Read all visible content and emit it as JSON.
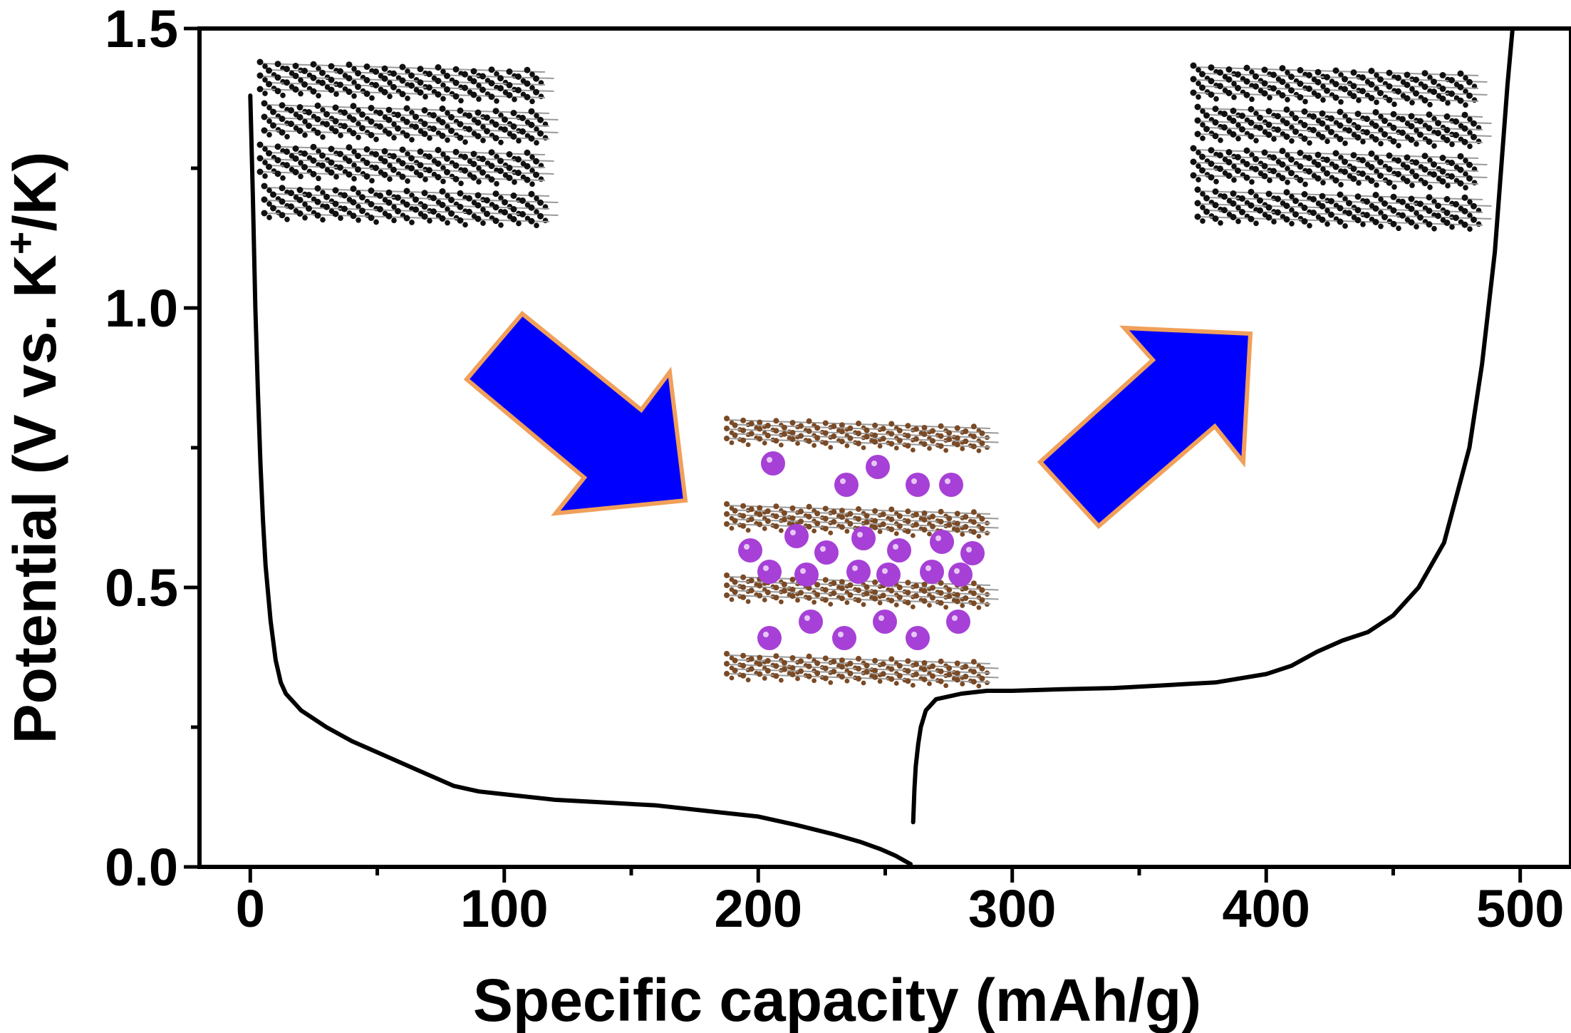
{
  "chart_data": {
    "type": "line",
    "title": "",
    "xlabel": "Specific capacity (mAh/g)",
    "ylabel_parts": {
      "prefix": "Potential (V vs. K",
      "superscript": "+",
      "suffix": "/K)"
    },
    "xlim": [
      -20,
      520
    ],
    "ylim": [
      0,
      1.5
    ],
    "x_ticks": [
      0,
      100,
      200,
      300,
      400,
      500
    ],
    "x_tick_labels": [
      "0",
      "100",
      "200",
      "300",
      "400",
      "500"
    ],
    "y_ticks": [
      0.0,
      0.5,
      1.0,
      1.5
    ],
    "y_tick_labels": [
      "0.0",
      "0.5",
      "1.0",
      "1.5"
    ],
    "grid": false,
    "legend": "none",
    "line_color": "#000000",
    "series": [
      {
        "x": [
          0,
          1,
          2,
          3,
          4,
          5,
          6,
          8,
          10,
          12,
          14,
          16,
          18,
          20,
          25,
          30,
          40,
          50,
          60,
          70,
          80,
          90,
          100,
          120,
          140,
          160,
          180,
          200,
          215,
          230,
          240,
          248,
          254,
          258,
          260
        ],
        "y": [
          1.38,
          1.2,
          1.0,
          0.85,
          0.72,
          0.62,
          0.54,
          0.44,
          0.37,
          0.33,
          0.31,
          0.3,
          0.29,
          0.28,
          0.265,
          0.25,
          0.225,
          0.205,
          0.185,
          0.165,
          0.145,
          0.135,
          0.13,
          0.12,
          0.115,
          0.11,
          0.1,
          0.09,
          0.075,
          0.058,
          0.045,
          0.032,
          0.02,
          0.01,
          0.005
        ]
      },
      {
        "x": [
          261,
          261.5,
          262,
          263,
          264,
          266,
          268,
          270,
          275,
          280,
          290,
          300,
          320,
          340,
          360,
          380,
          400,
          410,
          420,
          430,
          440,
          450,
          460,
          470,
          480,
          485,
          490,
          495,
          497
        ],
        "y": [
          0.08,
          0.14,
          0.18,
          0.22,
          0.25,
          0.28,
          0.29,
          0.3,
          0.305,
          0.31,
          0.315,
          0.315,
          0.318,
          0.32,
          0.325,
          0.33,
          0.345,
          0.36,
          0.385,
          0.405,
          0.42,
          0.45,
          0.5,
          0.58,
          0.75,
          0.9,
          1.1,
          1.4,
          1.5
        ]
      }
    ]
  },
  "illustration": {
    "graphene_atom_color": "#111111",
    "carbon_atom_color_lithiated": "#7a4a26",
    "potassium_atom_color": "#a640d6",
    "arrow_fill": "#0000ff",
    "arrow_stroke": "#f0a05a"
  }
}
